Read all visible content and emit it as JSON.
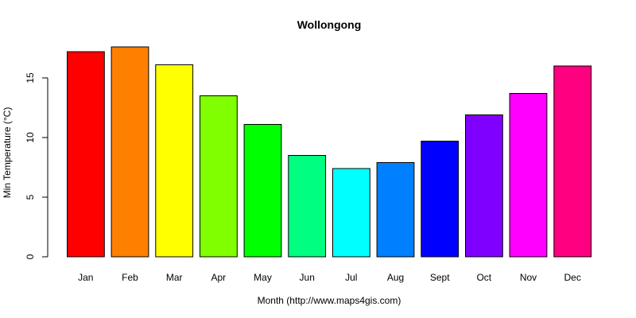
{
  "chart_data": {
    "type": "bar",
    "title": "Wollongong",
    "xlabel": "Month (http://www.maps4gis.com)",
    "ylabel": "Min Temperature (°C)",
    "categories": [
      "Jan",
      "Feb",
      "Mar",
      "Apr",
      "May",
      "Jun",
      "Jul",
      "Aug",
      "Sept",
      "Oct",
      "Nov",
      "Dec"
    ],
    "values": [
      17.2,
      17.6,
      16.1,
      13.5,
      11.1,
      8.5,
      7.4,
      7.9,
      9.7,
      11.9,
      13.7,
      16.0
    ],
    "colors": [
      "#FF0000",
      "#FF8000",
      "#FFFF00",
      "#80FF00",
      "#00FF00",
      "#00FF80",
      "#00FFFF",
      "#0080FF",
      "#0000FF",
      "#8000FF",
      "#FF00FF",
      "#FF0080"
    ],
    "y_ticks": [
      0,
      5,
      10,
      15
    ],
    "ylim": [
      0,
      17.6
    ],
    "grid": false,
    "legend": "none"
  }
}
